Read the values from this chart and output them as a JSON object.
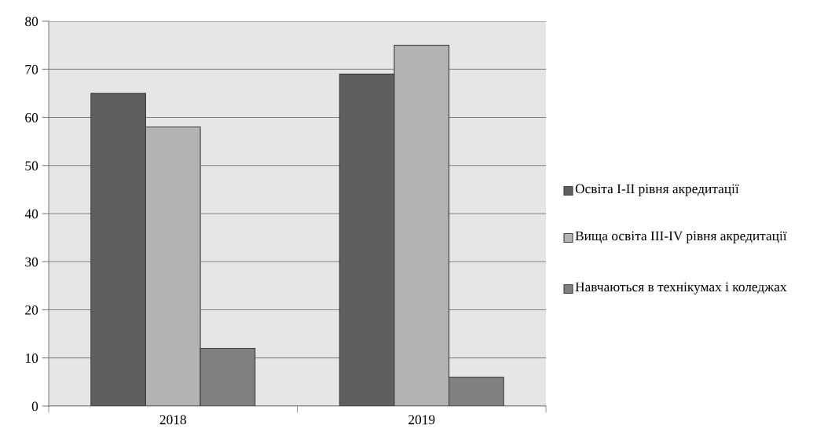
{
  "chart_data": {
    "type": "bar",
    "categories": [
      "2018",
      "2019"
    ],
    "series": [
      {
        "name": "Освіта I-II рівня акредитації",
        "color": "#5f5f5f",
        "values": [
          65,
          69
        ]
      },
      {
        "name": "Вища освіта III-IV рівня акредитації",
        "color": "#b3b3b3",
        "values": [
          58,
          75
        ]
      },
      {
        "name": "Навчаються в технікумах і коледжах",
        "color": "#808080",
        "values": [
          12,
          6
        ]
      }
    ],
    "ylim": [
      0,
      80
    ],
    "yticks": [
      0,
      10,
      20,
      30,
      40,
      50,
      60,
      70,
      80
    ],
    "grid": "y",
    "legend": "right"
  }
}
